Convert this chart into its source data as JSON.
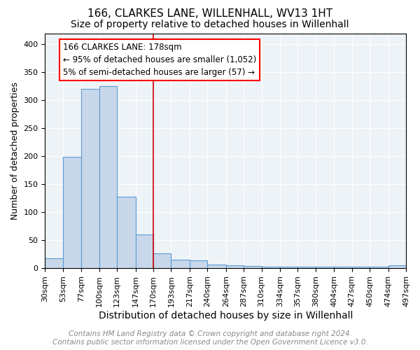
{
  "title": "166, CLARKES LANE, WILLENHALL, WV13 1HT",
  "subtitle": "Size of property relative to detached houses in Willenhall",
  "xlabel": "Distribution of detached houses by size in Willenhall",
  "ylabel": "Number of detached properties",
  "bar_color": "#c8d8ea",
  "bar_edge_color": "#5b9bd5",
  "background_color": "#eef3f8",
  "grid_color": "#ffffff",
  "bin_edges": [
    30,
    53,
    77,
    100,
    123,
    147,
    170,
    193,
    217,
    240,
    264,
    287,
    310,
    334,
    357,
    380,
    404,
    427,
    450,
    474,
    497
  ],
  "bin_labels": [
    "30sqm",
    "53sqm",
    "77sqm",
    "100sqm",
    "123sqm",
    "147sqm",
    "170sqm",
    "193sqm",
    "217sqm",
    "240sqm",
    "264sqm",
    "287sqm",
    "310sqm",
    "334sqm",
    "357sqm",
    "380sqm",
    "404sqm",
    "427sqm",
    "450sqm",
    "474sqm",
    "497sqm"
  ],
  "counts": [
    18,
    199,
    320,
    325,
    128,
    60,
    26,
    15,
    14,
    6,
    5,
    4,
    3,
    3,
    3,
    3,
    3,
    3,
    3,
    5
  ],
  "vline_x": 170,
  "vline_color": "#cc0000",
  "annotation_lines": [
    "166 CLARKES LANE: 178sqm",
    "← 95% of detached houses are smaller (1,052)",
    "5% of semi-detached houses are larger (57) →"
  ],
  "ylim": [
    0,
    420
  ],
  "yticks": [
    0,
    50,
    100,
    150,
    200,
    250,
    300,
    350,
    400
  ],
  "footer_line1": "Contains HM Land Registry data © Crown copyright and database right 2024.",
  "footer_line2": "Contains public sector information licensed under the Open Government Licence v3.0.",
  "title_fontsize": 11,
  "subtitle_fontsize": 10,
  "xlabel_fontsize": 10,
  "ylabel_fontsize": 9,
  "tick_fontsize": 8,
  "annotation_fontsize": 8.5,
  "footer_fontsize": 7.5
}
